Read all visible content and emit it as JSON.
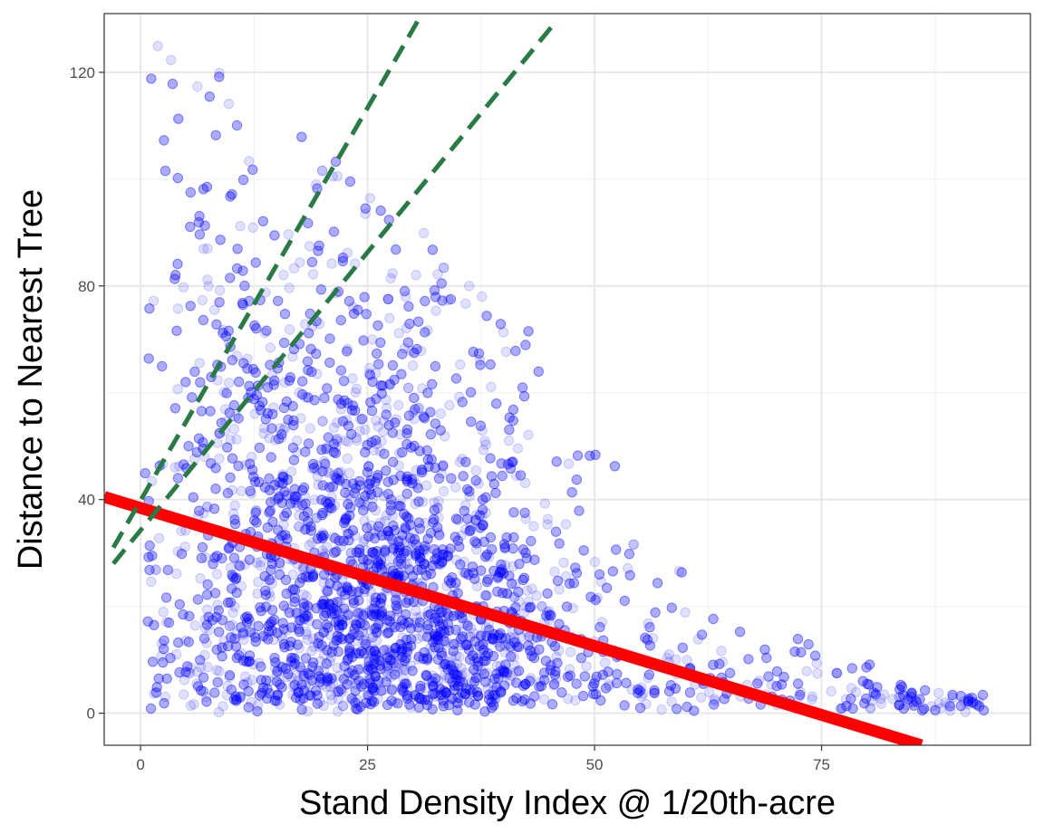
{
  "chart_data": {
    "type": "scatter",
    "title": "",
    "xlabel": "Stand Density Index @ 1/20th-acre",
    "ylabel": "Distance to Nearest Tree",
    "xlim": [
      -4,
      98
    ],
    "ylim": [
      -6,
      131
    ],
    "x_ticks": [
      0,
      25,
      50,
      75
    ],
    "x_tick_labels": [
      "0",
      "25",
      "50",
      "75"
    ],
    "y_ticks": [
      0,
      40,
      80,
      120
    ],
    "y_tick_labels": [
      "0",
      "40",
      "80",
      "120"
    ],
    "grid": true,
    "legend": "none",
    "background": "white-with-gray-grid",
    "point_color": "#0000ff",
    "point_opacity": 0.12,
    "point_cloud": {
      "n_points": 5200,
      "x_range": [
        0.5,
        93
      ],
      "y_range": [
        0,
        126
      ],
      "density_peak": {
        "x": 22,
        "y": 15
      },
      "description_of_trend": "points concentrated at low distance; upper envelope declines from ~125 at x~5 to ~2 at x~90"
    },
    "lines": [
      {
        "style": "solid",
        "color": "#ff0000",
        "points": [
          [
            -4,
            40.5
          ],
          [
            86,
            -6
          ]
        ]
      },
      {
        "style": "dashed",
        "color": "#2a7a46",
        "points": [
          [
            -3,
            31
          ],
          [
            31,
            131
          ]
        ]
      },
      {
        "style": "dashed",
        "color": "#2a7a46",
        "points": [
          [
            -3,
            28
          ],
          [
            45.5,
            129
          ]
        ]
      }
    ]
  }
}
